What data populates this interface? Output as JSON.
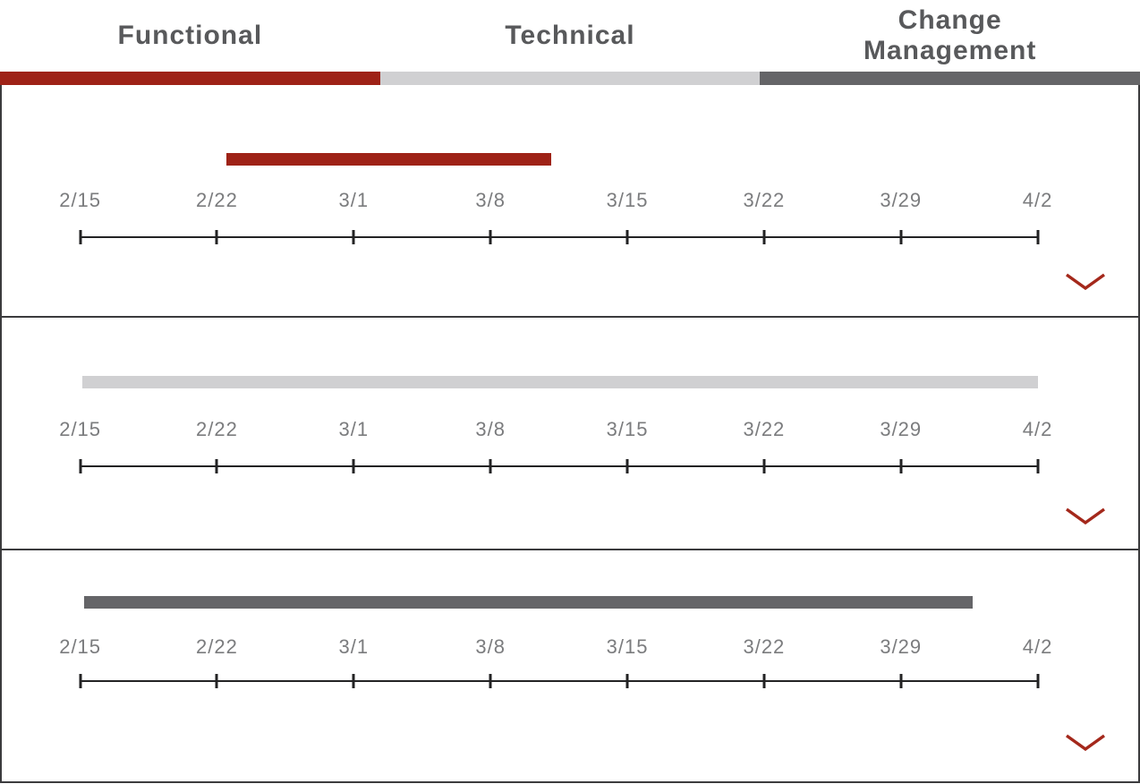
{
  "tabs": [
    {
      "label": "Functional",
      "color": "#9E2217"
    },
    {
      "label": "Technical",
      "color": "#D0D0D2"
    },
    {
      "label": "Change Management",
      "color": "#656568"
    }
  ],
  "colors": {
    "accent_red": "#9E2217",
    "light_gray": "#D0D0D2",
    "dark_gray": "#656568",
    "chevron": "#A4281B",
    "axis": "#232324",
    "date_text": "#7B7C7E",
    "tab_text": "#58595B",
    "panel_border": "#3B3B3D"
  },
  "chart_data": {
    "type": "gantt",
    "title": "",
    "x_ticks": [
      "2/15",
      "2/22",
      "3/1",
      "3/8",
      "3/15",
      "3/22",
      "3/29",
      "4/2"
    ],
    "tick_spacing": "even",
    "axis_left_pct": 6.9,
    "axis_right_pct": 91.15,
    "grid": false,
    "categories": [
      "Functional",
      "Technical",
      "Change Management"
    ],
    "series": [
      {
        "name": "Functional",
        "start": "2/22",
        "end": "3/11",
        "start_frac": 0.153,
        "end_frac": 0.492,
        "color": "#9E2217"
      },
      {
        "name": "Technical",
        "start": "2/15",
        "end": "4/2",
        "start_frac": 0.002,
        "end_frac": 1.0,
        "color": "#D0D0D2"
      },
      {
        "name": "Change Management",
        "start": "2/15",
        "end": "3/31",
        "start_frac": 0.004,
        "end_frac": 0.932,
        "color": "#656568"
      }
    ]
  }
}
